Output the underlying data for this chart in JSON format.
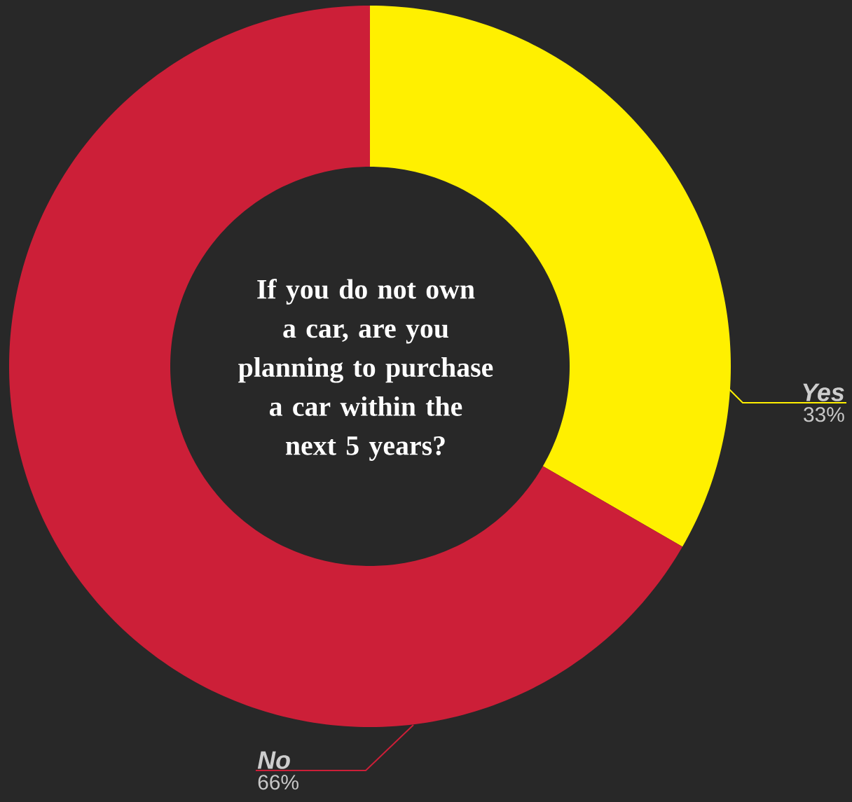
{
  "chart_data": {
    "type": "donut",
    "title": "If you do not own a car, are you planning to purchase a car within the next 5 years?",
    "categories": [
      "Yes",
      "No"
    ],
    "values": [
      33,
      66
    ],
    "value_labels": [
      "33%",
      "66%"
    ],
    "colors": [
      "#fff000",
      "#cc1f38"
    ]
  }
}
